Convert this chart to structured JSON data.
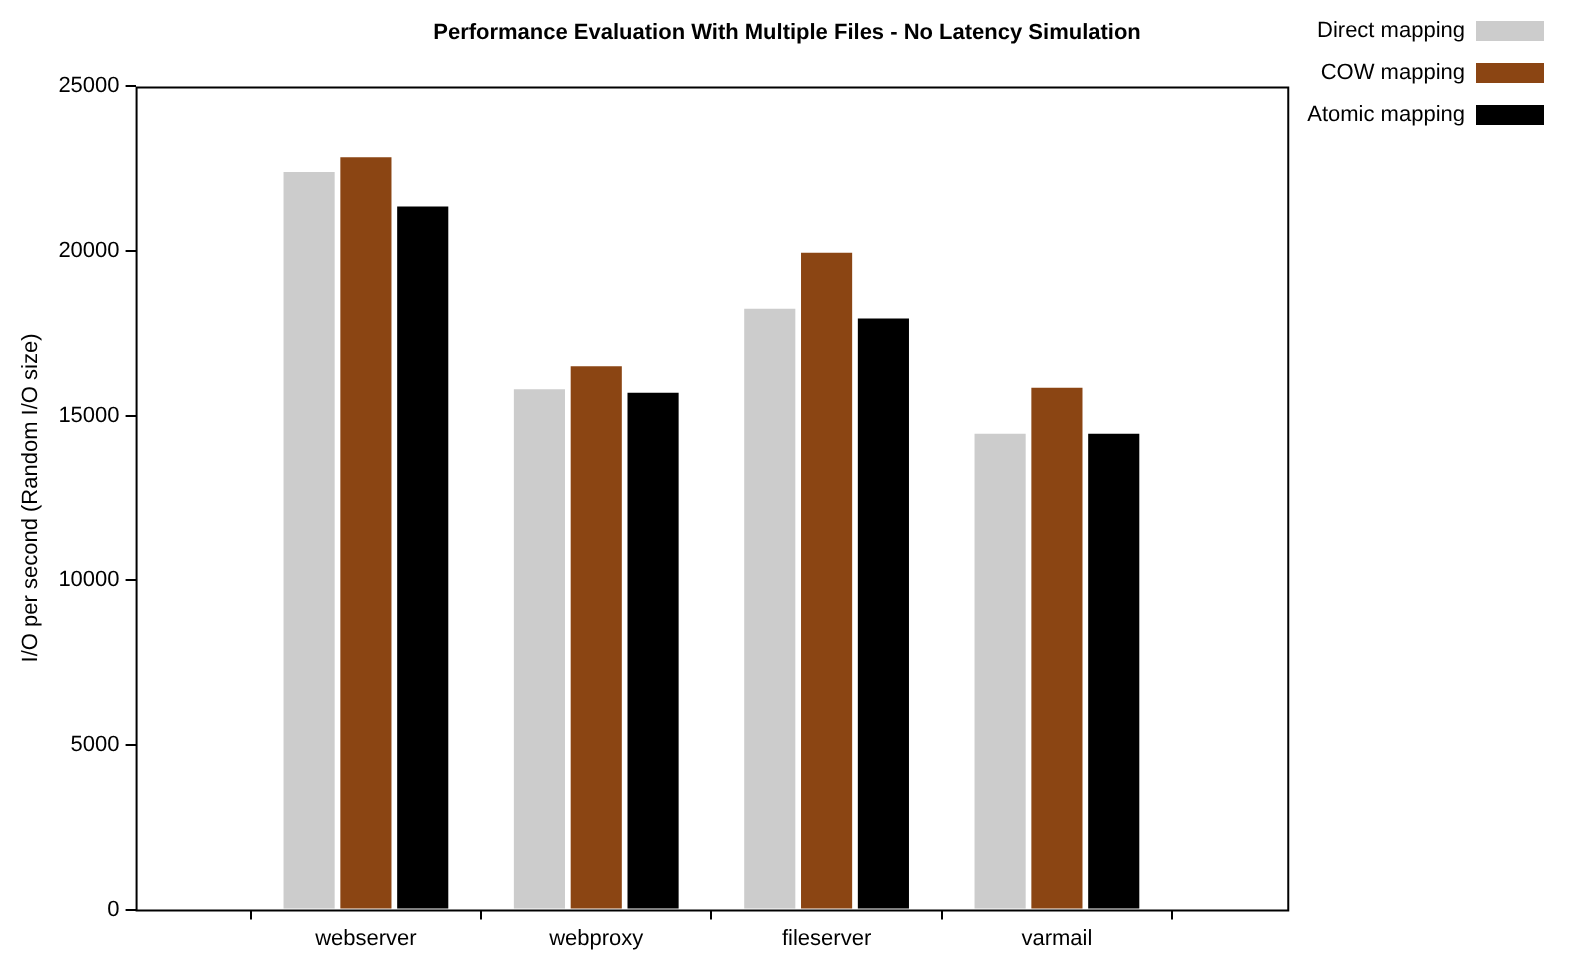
{
  "chart_data": {
    "type": "bar",
    "title": "Performance Evaluation With Multiple Files - No Latency Simulation",
    "ylabel": "I/O per second (Random I/O size)",
    "categories": [
      "webserver",
      "webproxy",
      "fileserver",
      "varmail"
    ],
    "series": [
      {
        "name": "Direct mapping",
        "color": "#cccccc",
        "values": [
          22400,
          15800,
          18250,
          14450
        ]
      },
      {
        "name": "COW mapping",
        "color": "#8b4513",
        "values": [
          22850,
          16500,
          19950,
          15850
        ]
      },
      {
        "name": "Atomic mapping",
        "color": "#000000",
        "values": [
          21350,
          15700,
          17950,
          14450
        ]
      }
    ],
    "ylim": [
      0,
      25000
    ],
    "yticks": [
      0,
      5000,
      10000,
      15000,
      20000,
      25000
    ],
    "grid": false,
    "legend": "top right"
  }
}
